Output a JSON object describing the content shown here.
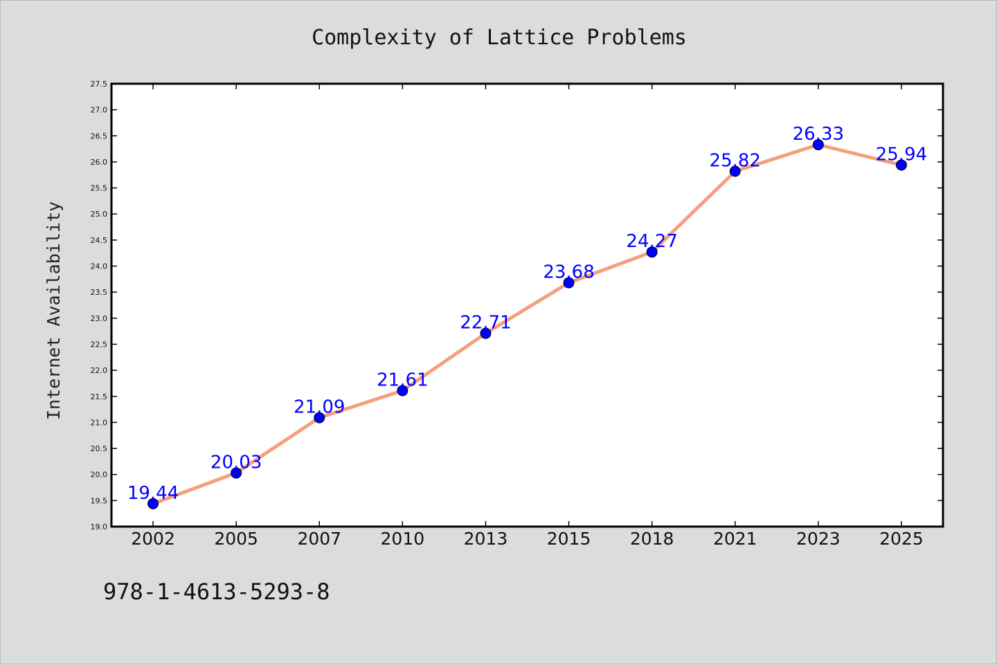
{
  "chart_data": {
    "type": "line",
    "title": "Complexity of Lattice Problems",
    "xlabel": "",
    "ylabel": "Internet Availability",
    "categories": [
      "2002",
      "2005",
      "2007",
      "2010",
      "2013",
      "2015",
      "2018",
      "2021",
      "2023",
      "2025"
    ],
    "values": [
      19.44,
      20.03,
      21.09,
      21.61,
      22.71,
      23.68,
      24.27,
      25.82,
      26.33,
      25.94
    ],
    "data_labels": [
      "19.44",
      "20.03",
      "21.09",
      "21.61",
      "22.71",
      "23.68",
      "24.27",
      "25.82",
      "26.33",
      "25.94"
    ],
    "ylim": [
      19.0,
      27.5
    ],
    "yticks": [
      "19.0",
      "19.5",
      "20.0",
      "20.5",
      "21.0",
      "21.5",
      "22.0",
      "22.5",
      "23.0",
      "23.5",
      "24.0",
      "24.5",
      "25.0",
      "25.5",
      "26.0",
      "26.5",
      "27.0",
      "27.5"
    ],
    "grid": false,
    "line_color": "#f4a07e",
    "marker_color": "#0000ff",
    "label_color": "#0000ff"
  },
  "footer_text": "978-1-4613-5293-8"
}
